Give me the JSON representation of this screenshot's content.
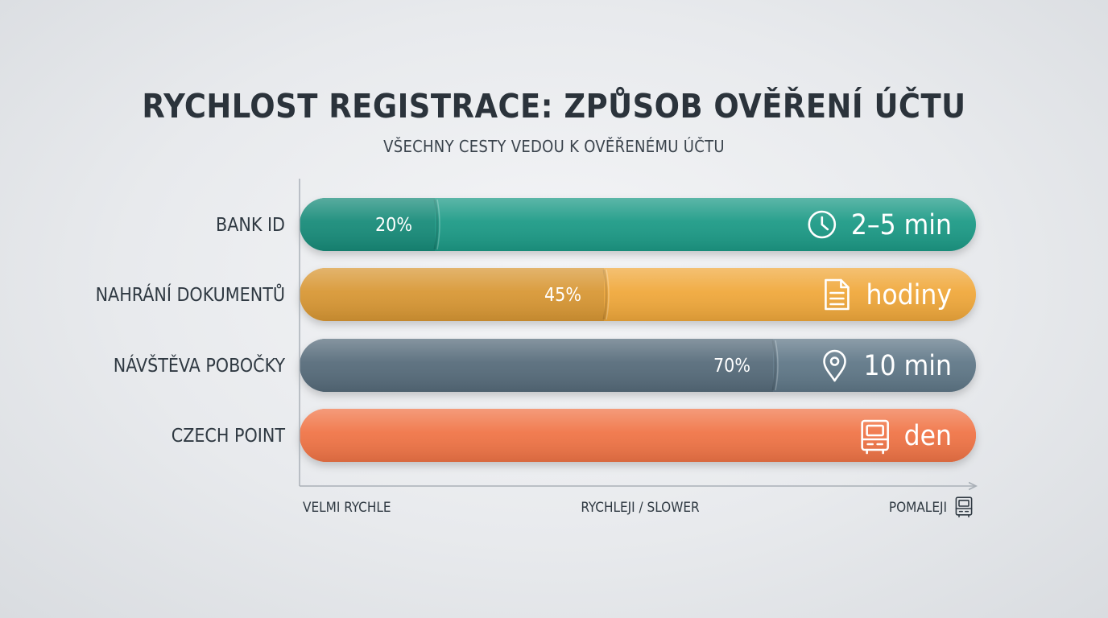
{
  "chart_data": {
    "type": "bar",
    "orientation": "horizontal",
    "title": "RYCHLOST REGISTRACE: ZPŮSOB OVĚŘENÍ ÚČTU",
    "subtitle": "VŠECHNY CESTY VEDOU K OVĚŘENÉMU ÚČTU",
    "categories": [
      "BANK ID",
      "NAHRÁNÍ DOKUMENTŮ",
      "NÁVŠTĚVA POBOČKY",
      "CZECH POINT"
    ],
    "values": [
      20,
      45,
      70,
      100
    ],
    "value_labels": [
      "20%",
      "45%",
      "70%",
      ""
    ],
    "time_labels": [
      "2–5 min",
      "hodiny",
      "10 min",
      "den"
    ],
    "icons": [
      "clock-icon",
      "document-icon",
      "location-pin-icon",
      "kiosk-icon"
    ],
    "colors": [
      "#1a9a86",
      "#f0a83a",
      "#5f7787",
      "#f07446"
    ],
    "x_axis_labels": [
      "VELMI RYCHLE",
      "RYCHLEJI / SLOWER",
      "POMALEJI"
    ],
    "x_axis_end_icon": "kiosk-icon",
    "xlim": [
      0,
      100
    ],
    "grid": false,
    "legend": "none"
  }
}
